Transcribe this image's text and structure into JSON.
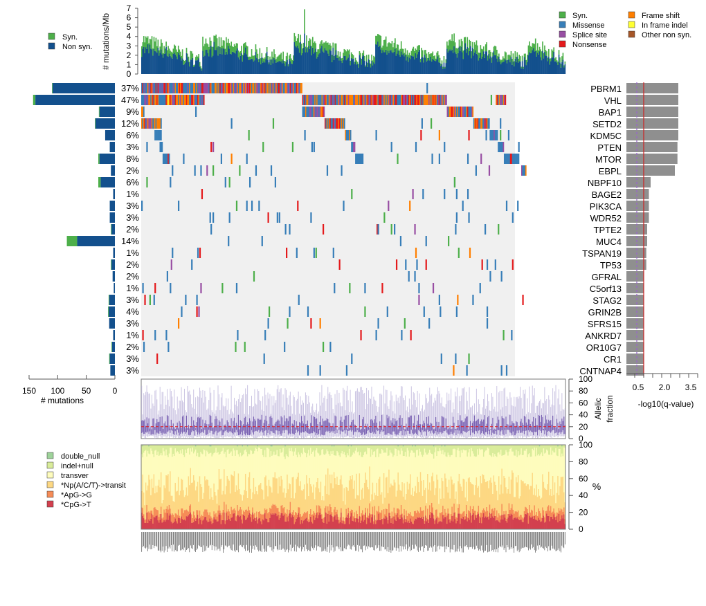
{
  "chart_data": [
    {
      "id": "tmb",
      "type": "bar",
      "title": "",
      "ylabel": "# mutations/Mb",
      "ylim": [
        0,
        7
      ],
      "yticks": [
        "0",
        "1",
        "2",
        "3",
        "4",
        "5",
        "6",
        "7"
      ],
      "legend": {
        "placement": "top-left",
        "items": [
          {
            "label": "Syn.",
            "color": "#4daf4a"
          },
          {
            "label": "Non syn.",
            "color": "#13508d"
          }
        ]
      },
      "n_samples": 417,
      "series_note": "per-sample stacked bars: non-syn (blue) base with syn (green) top; values approx 0.3–7 mutations/Mb, sorted within mutation groups"
    },
    {
      "id": "oncoprint",
      "type": "heatmap",
      "legend": {
        "placement": "top-right",
        "items": [
          {
            "label": "Syn.",
            "color": "#4daf4a"
          },
          {
            "label": "Missense",
            "color": "#377eb8"
          },
          {
            "label": "Splice site",
            "color": "#984ea3"
          },
          {
            "label": "Nonsense",
            "color": "#e41a1c"
          },
          {
            "label": "Frame shift",
            "color": "#ff7f00"
          },
          {
            "label": "In frame indel",
            "color": "#ffff33"
          },
          {
            "label": "Other non syn.",
            "color": "#a65628"
          }
        ]
      },
      "genes": [
        "PBRM1",
        "VHL",
        "BAP1",
        "SETD2",
        "KDM5C",
        "PTEN",
        "MTOR",
        "EBPL",
        "NBPF10",
        "BAGE2",
        "PIK3CA",
        "WDR52",
        "TPTE2",
        "MUC4",
        "TSPAN19",
        "TP53",
        "GFRAL",
        "C5orf13",
        "STAG2",
        "GRIN2B",
        "SFRS15",
        "ANKRD7",
        "OR10G7",
        "CR1",
        "CNTNAP4"
      ],
      "percent": [
        "37%",
        "47%",
        "9%",
        "12%",
        "6%",
        "3%",
        "8%",
        "2%",
        "6%",
        "1%",
        "3%",
        "3%",
        "2%",
        "14%",
        "1%",
        "2%",
        "2%",
        "1%",
        "3%",
        "4%",
        "3%",
        "1%",
        "2%",
        "3%",
        "3%"
      ]
    },
    {
      "id": "mutation-counts",
      "type": "bar",
      "xlabel": "# mutations",
      "xlim": [
        150,
        0
      ],
      "xticks": [
        "150",
        "100",
        "50",
        "0"
      ],
      "categories": [
        "PBRM1",
        "VHL",
        "BAP1",
        "SETD2",
        "KDM5C",
        "PTEN",
        "MTOR",
        "EBPL",
        "NBPF10",
        "BAGE2",
        "PIK3CA",
        "WDR52",
        "TPTE2",
        "MUC4",
        "TSPAN19",
        "TP53",
        "GFRAL",
        "C5orf13",
        "STAG2",
        "GRIN2B",
        "SFRS15",
        "ANKRD7",
        "OR10G7",
        "CR1",
        "CNTNAP4"
      ],
      "series": [
        {
          "name": "Non syn.",
          "color": "#13508d",
          "values": [
            109,
            139,
            27,
            34,
            17,
            9,
            27,
            7,
            25,
            3,
            9,
            9,
            6,
            66,
            3,
            6,
            4,
            2,
            10,
            11,
            10,
            3,
            5,
            9,
            8
          ]
        },
        {
          "name": "Syn.",
          "color": "#4daf4a",
          "values": [
            1,
            4,
            1,
            1,
            0,
            0,
            2,
            0,
            4,
            0,
            0,
            0,
            1,
            18,
            0,
            1,
            0,
            0,
            1,
            1,
            0,
            0,
            1,
            1,
            0
          ]
        }
      ]
    },
    {
      "id": "qvalue",
      "type": "bar",
      "xlabel": "-log10(q-value)",
      "xticks": [
        "0.5",
        "2.0",
        "3.5"
      ],
      "xlim": [
        0,
        4
      ],
      "categories": [
        "PBRM1",
        "VHL",
        "BAP1",
        "SETD2",
        "KDM5C",
        "PTEN",
        "MTOR",
        "EBPL",
        "NBPF10",
        "BAGE2",
        "PIK3CA",
        "WDR52",
        "TPTE2",
        "MUC4",
        "TSPAN19",
        "TP53",
        "GFRAL",
        "C5orf13",
        "STAG2",
        "GRIN2B",
        "SFRS15",
        "ANKRD7",
        "OR10G7",
        "CR1",
        "CNTNAP4"
      ],
      "values": [
        3.0,
        3.0,
        3.0,
        3.0,
        3.0,
        2.95,
        2.95,
        2.8,
        1.4,
        1.3,
        1.3,
        1.3,
        1.2,
        1.2,
        1.15,
        1.15,
        1.0,
        1.0,
        1.0,
        1.0,
        1.0,
        1.0,
        1.0,
        1.0,
        1.0
      ],
      "reference_lines": [
        {
          "value": 0.6,
          "style": "dashed",
          "color": "#9966cc"
        },
        {
          "value": 1.0,
          "style": "solid",
          "color": "#cc2222"
        }
      ]
    },
    {
      "id": "allelic-fraction",
      "type": "bar",
      "ylabel": "Allelic fraction",
      "ylim": [
        0,
        100
      ],
      "yticks": [
        "0",
        "20",
        "40",
        "60",
        "80",
        "100"
      ],
      "median_line": 20,
      "series_note": "per-sample range bars (light purple) and interquartile bars (dark purple); red dashed median line near 20"
    },
    {
      "id": "mutation-spectrum",
      "type": "bar",
      "ylabel": "%",
      "ylim": [
        0,
        100
      ],
      "yticks": [
        "0",
        "20",
        "40",
        "60",
        "80",
        "100"
      ],
      "legend": {
        "placement": "left",
        "items": [
          {
            "label": "double_null",
            "color": "#9ed39a"
          },
          {
            "label": "indel+null",
            "color": "#d9ec9a"
          },
          {
            "label": "transver",
            "color": "#fefcbd"
          },
          {
            "label": "*Np(A/C/T)->transit",
            "color": "#fdd883"
          },
          {
            "label": "*ApG->G",
            "color": "#f68c57"
          },
          {
            "label": "*CpG->T",
            "color": "#d3404e"
          }
        ]
      },
      "typical_fractions": {
        "*CpG->T": 12,
        "*ApG->G": 8,
        "*Np(A/C/T)->transit": 25,
        "transver": 45,
        "indel+null": 10,
        "double_null": 0
      }
    }
  ]
}
